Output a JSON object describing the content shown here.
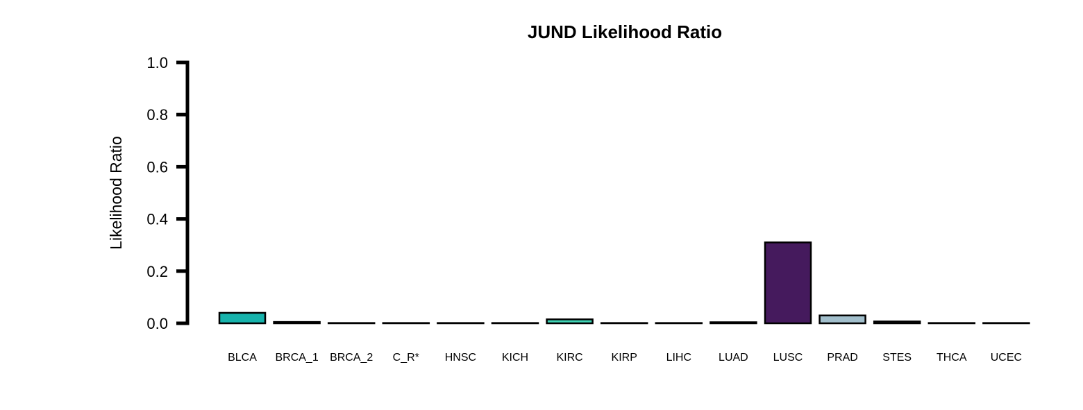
{
  "chart_data": {
    "type": "bar",
    "title": "JUND Likelihood Ratio",
    "xlabel": "",
    "ylabel": "Likelihood Ratio",
    "ylim": [
      0,
      1.0
    ],
    "yticks": [
      "0.0",
      "0.2",
      "0.4",
      "0.6",
      "0.8",
      "1.0"
    ],
    "ytick_values": [
      0,
      0.2,
      0.4,
      0.6,
      0.8,
      1.0
    ],
    "grid": false,
    "legend": "none",
    "categories": [
      "BLCA",
      "BRCA_1",
      "BRCA_2",
      "C_R*",
      "HNSC",
      "KICH",
      "KIRC",
      "KIRP",
      "LIHC",
      "LUAD",
      "LUSC",
      "PRAD",
      "STES",
      "THCA",
      "UCEC"
    ],
    "values": [
      0.04,
      0.005,
      0.001,
      0.001,
      0.001,
      0.001,
      0.015,
      0.001,
      0.001,
      0.004,
      0.31,
      0.03,
      0.007,
      0.001,
      0.001
    ],
    "bar_colors": [
      "#17b3ac",
      "#2f2f2f",
      "#2f2f2f",
      "#2f2f2f",
      "#2f2f2f",
      "#2f2f2f",
      "#3fd3b4",
      "#2f2f2f",
      "#2f2f2f",
      "#2f2f2f",
      "#451a5d",
      "#a2bfcc",
      "#2f2f2f",
      "#2f2f2f",
      "#2f2f2f"
    ]
  }
}
